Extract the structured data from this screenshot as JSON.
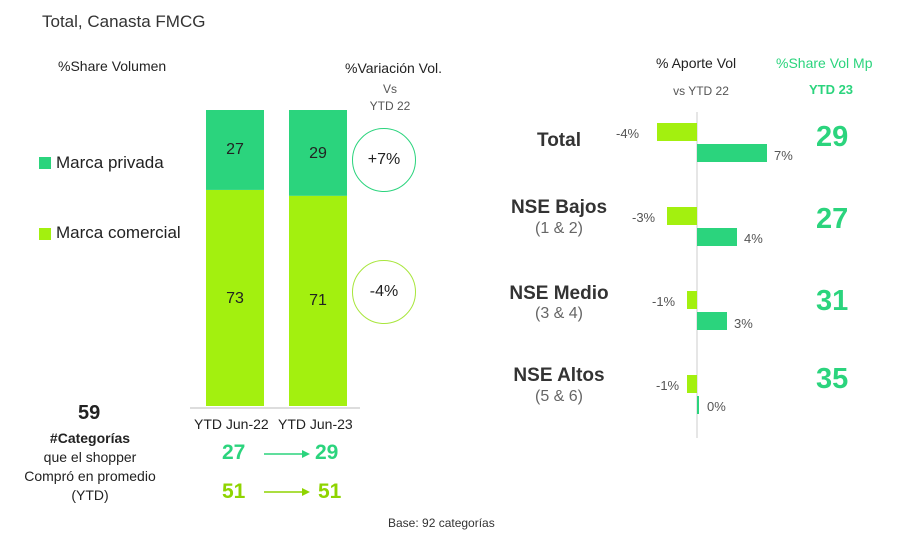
{
  "title": "Total, Canasta FMCG",
  "left": {
    "share_header": "%Share Volumen",
    "variation_header": "%Variación Vol.",
    "variation_vs": "Vs",
    "variation_ref": "YTD 22",
    "legend": [
      {
        "label": "Marca privada",
        "color": "#2bd47d"
      },
      {
        "label": "Marca comercial",
        "color": "#a3f00f"
      }
    ],
    "variations": {
      "privada": "+7%",
      "comercial": "-4%"
    },
    "categories_count": "59",
    "categories_lines": [
      "#Categorías",
      "que el shopper",
      "Compró en promedio",
      "(YTD)"
    ],
    "comparisons": [
      {
        "from": "27",
        "to": "29"
      },
      {
        "from": "51",
        "to": "51"
      }
    ]
  },
  "right": {
    "aporte_header": "% Aporte Vol",
    "aporte_sub": "vs YTD 22",
    "share_header": "%Share Vol Mp",
    "share_sub": "YTD 23",
    "segments": [
      {
        "name": "Total",
        "sub": ""
      },
      {
        "name": "NSE Bajos",
        "sub": "(1 & 2)"
      },
      {
        "name": "NSE Medio",
        "sub": "(3 & 4)"
      },
      {
        "name": "NSE Altos",
        "sub": "(5 & 6)"
      }
    ]
  },
  "base": "Base: 92 categorías",
  "colors": {
    "privada": "#2bd47d",
    "comercial": "#a3f00f",
    "axis": "#cccccc"
  },
  "chart_data": [
    {
      "type": "bar",
      "stacked": true,
      "title": "%Share Volumen",
      "categories": [
        "YTD Jun-22",
        "YTD Jun-23"
      ],
      "series": [
        {
          "name": "Marca comercial",
          "values": [
            73,
            71
          ],
          "labels": [
            "73",
            "71"
          ]
        },
        {
          "name": "Marca privada",
          "values": [
            27,
            29
          ],
          "labels": [
            "27",
            "29"
          ]
        }
      ],
      "ylim": [
        0,
        100
      ]
    },
    {
      "type": "bar",
      "orientation": "horizontal",
      "title": "% Aporte Vol vs YTD 22",
      "categories": [
        "Total",
        "NSE Bajos",
        "NSE Medio",
        "NSE Altos"
      ],
      "series": [
        {
          "name": "Marca comercial",
          "values": [
            -4,
            -3,
            -1,
            -1
          ],
          "labels": [
            "-4%",
            "-3%",
            "-1%",
            "-1%"
          ]
        },
        {
          "name": "Marca privada",
          "values": [
            7,
            4,
            3,
            0
          ],
          "labels": [
            "7%",
            "4%",
            "3%",
            "0%"
          ]
        }
      ],
      "share_vol_mp_ytd23": [
        "29",
        "27",
        "31",
        "35"
      ]
    }
  ]
}
